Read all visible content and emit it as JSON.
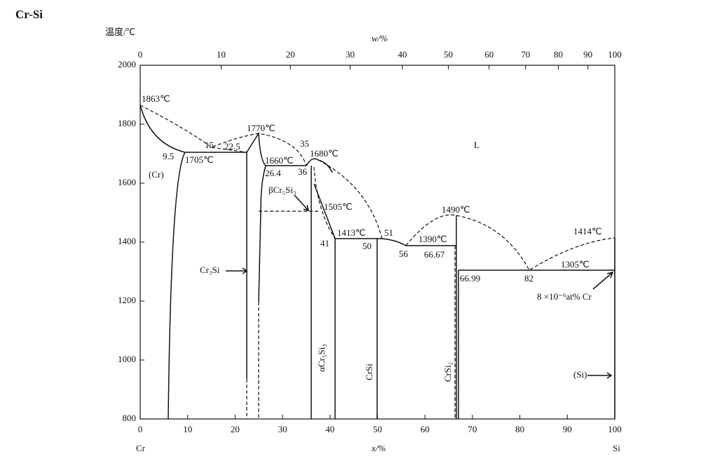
{
  "title": "Cr-Si",
  "y_axis": {
    "label": "温度/℃",
    "ticks": [
      800,
      1000,
      1200,
      1400,
      1600,
      1800,
      2000
    ]
  },
  "x_axis": {
    "label": "x/%",
    "ticks": [
      0,
      10,
      20,
      30,
      40,
      50,
      60,
      70,
      80,
      90,
      100
    ],
    "left_end": "Cr",
    "right_end": "Si"
  },
  "top_axis": {
    "label": "w/%",
    "ticks": [
      0,
      10,
      20,
      30,
      40,
      50,
      60,
      70,
      80,
      90,
      100
    ]
  },
  "annotations": [
    "1863℃",
    "1770℃",
    "15",
    "22.5",
    "9.5",
    "1705℃",
    "(Cr)",
    "35",
    "1680℃",
    "1660℃",
    "36",
    "26.4",
    "βCr₅Si₃",
    "1505℃",
    "1490℃",
    "1413℃",
    "51",
    "41",
    "50",
    "56",
    "1390℃",
    "66.67",
    "1414℃",
    "1305℃",
    "66.99",
    "82",
    "8 ×10⁻⁶at%  Cr",
    "L",
    "Cr₃Si",
    "αCr₅Si₃",
    "CrSi",
    "CrSi₂",
    "(Si)"
  ]
}
